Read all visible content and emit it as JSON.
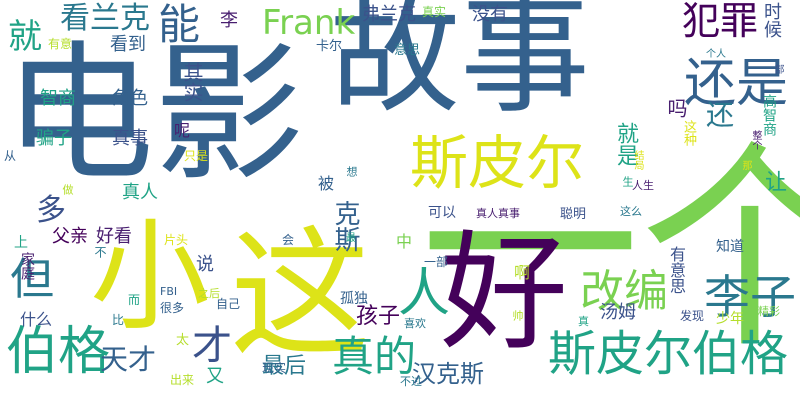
{
  "words": [
    "电影",
    "故事",
    "一个",
    "好",
    "小",
    "这",
    "斯皮尔",
    "斯皮尔伯格",
    "伯格",
    "还是",
    "人",
    "真的",
    "李子",
    "改编",
    "犯罪",
    "Frank",
    "能",
    "看兰克",
    "就",
    "但",
    "多",
    "才",
    "天才",
    "最后",
    "汉克斯",
    "孩子",
    "其实",
    "父亲",
    "好看",
    "克斯",
    "角色",
    "智商",
    "骗子",
    "真事",
    "真人",
    "李",
    "弗兰克",
    "卡尔",
    "看到",
    "真实",
    "没有",
    "意思",
    "有意",
    "时候",
    "吗",
    "这种",
    "还",
    "让",
    "就是",
    "高智商",
    "家庭",
    "孤独",
    "汤姆",
    "中",
    "说",
    "又",
    "太",
    "什么",
    "会",
    "片头",
    "真人真事",
    "聪明",
    "知道",
    "有意思",
    "发现",
    "少年",
    "精彩",
    "喜欢",
    "现实",
    "不过",
    "出来",
    "很多",
    "自己",
    "FBI",
    "之后",
    "一部",
    "被",
    "想",
    "可以",
    "这么",
    "个人",
    "上",
    "不",
    "比",
    "而",
    "从",
    "呢",
    "只是",
    "生",
    "做",
    "帅",
    "真",
    "啊",
    "部",
    "那",
    "最",
    "人生",
    "结局",
    "整个"
  ]
}
